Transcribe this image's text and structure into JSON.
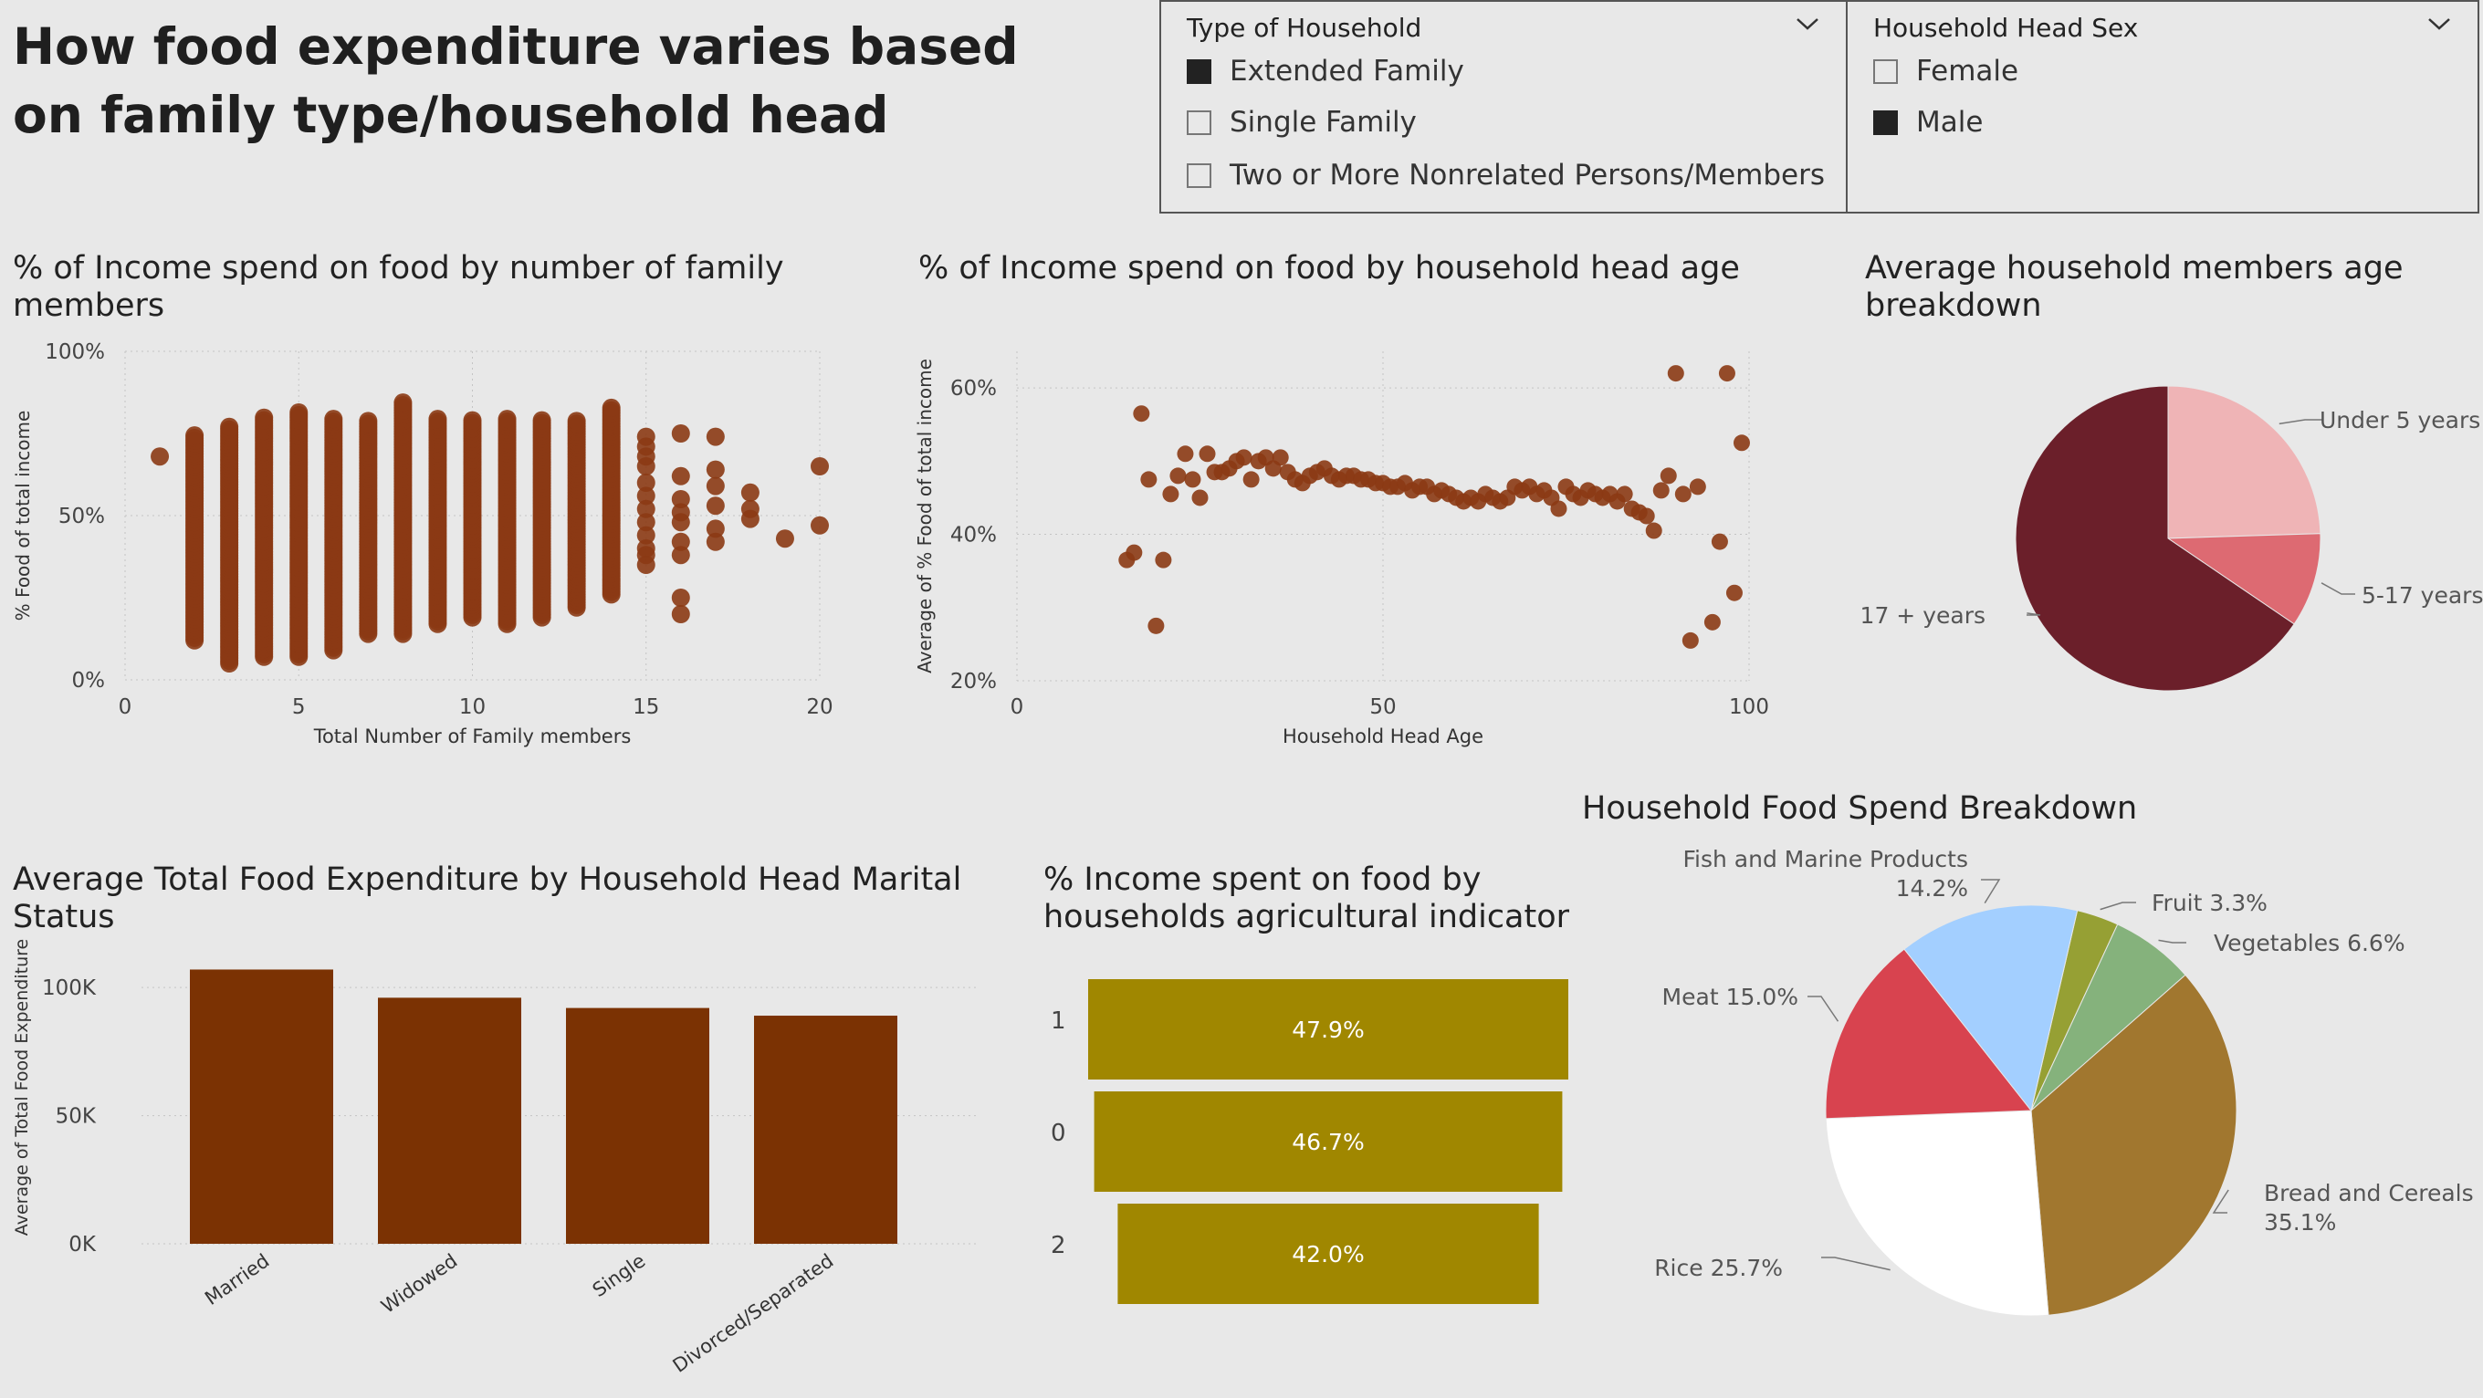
{
  "page": {
    "title": "How food expenditure varies based on family type/household head"
  },
  "slicers": {
    "household_type": {
      "header": "Type of Household",
      "items": [
        {
          "label": "Extended Family",
          "checked": true
        },
        {
          "label": "Single Family",
          "checked": false
        },
        {
          "label": "Two or More Nonrelated Persons/Members",
          "checked": false
        }
      ]
    },
    "head_sex": {
      "header": "Household Head Sex",
      "items": [
        {
          "label": "Female",
          "checked": false
        },
        {
          "label": "Male",
          "checked": true
        }
      ]
    }
  },
  "visuals": {
    "family_members": {
      "title": "% of Income spend on food by number of family members"
    },
    "head_age": {
      "title": "% of Income spend on food by household head age"
    },
    "age_breakdown": {
      "title": "Average household members age breakdown"
    },
    "marital": {
      "title": "Average Total Food Expenditure by Household Head Marital Status"
    },
    "agri": {
      "title": "% Income spent on food by households agricultural indicator"
    },
    "food_spend": {
      "title": "Household Food Spend Breakdown"
    }
  },
  "chart_data": [
    {
      "id": "family_members",
      "type": "scatter",
      "xlabel": "Total Number of Family members",
      "ylabel": "% Food of total income",
      "xlim": [
        0,
        20
      ],
      "ylim": [
        0,
        100
      ],
      "xticks": [
        "0",
        "5",
        "10",
        "15",
        "20"
      ],
      "yticks": [
        "0%",
        "50%",
        "100%"
      ],
      "grid": true,
      "color": "#8b3a14",
      "series": [
        {
          "x": 1,
          "y": [
            68
          ]
        },
        {
          "x": 2,
          "y_range": [
            12,
            75
          ]
        },
        {
          "x": 3,
          "y_range": [
            5,
            77
          ]
        },
        {
          "x": 4,
          "y_range": [
            7,
            80
          ]
        },
        {
          "x": 5,
          "y_range": [
            7,
            82
          ]
        },
        {
          "x": 6,
          "y_range": [
            9,
            80
          ]
        },
        {
          "x": 7,
          "y_range": [
            14,
            79
          ]
        },
        {
          "x": 8,
          "y_range": [
            14,
            85
          ]
        },
        {
          "x": 9,
          "y_range": [
            17,
            80
          ]
        },
        {
          "x": 10,
          "y_range": [
            19,
            79
          ]
        },
        {
          "x": 11,
          "y_range": [
            17,
            80
          ]
        },
        {
          "x": 12,
          "y_range": [
            19,
            79
          ]
        },
        {
          "x": 13,
          "y_range": [
            22,
            79
          ]
        },
        {
          "x": 14,
          "y_range": [
            26,
            83
          ]
        },
        {
          "x": 15,
          "y": [
            35,
            38,
            40,
            44,
            48,
            52,
            56,
            60,
            65,
            68,
            71,
            74
          ]
        },
        {
          "x": 16,
          "y": [
            20,
            25,
            38,
            42,
            48,
            51,
            55,
            62,
            75
          ]
        },
        {
          "x": 17,
          "y": [
            42,
            46,
            53,
            59,
            64,
            74
          ]
        },
        {
          "x": 18,
          "y": [
            49,
            52,
            57
          ]
        },
        {
          "x": 19,
          "y": [
            43
          ]
        },
        {
          "x": 20,
          "y": [
            47,
            65
          ]
        }
      ]
    },
    {
      "id": "head_age",
      "type": "scatter",
      "xlabel": "Household Head Age",
      "ylabel": "Average of % Food of total income",
      "xlim": [
        0,
        100
      ],
      "ylim": [
        20,
        65
      ],
      "xticks": [
        "0",
        "50",
        "100"
      ],
      "yticks": [
        "20%",
        "40%",
        "60%"
      ],
      "grid": true,
      "color": "#8b3a14",
      "points": [
        [
          15,
          36.5
        ],
        [
          16,
          37.5
        ],
        [
          17,
          56.5
        ],
        [
          18,
          47.5
        ],
        [
          19,
          27.5
        ],
        [
          20,
          36.5
        ],
        [
          21,
          45.5
        ],
        [
          22,
          48.0
        ],
        [
          23,
          51.0
        ],
        [
          24,
          47.5
        ],
        [
          25,
          45.0
        ],
        [
          26,
          51.0
        ],
        [
          27,
          48.5
        ],
        [
          28,
          48.5
        ],
        [
          29,
          49.0
        ],
        [
          30,
          50.0
        ],
        [
          31,
          50.5
        ],
        [
          32,
          47.5
        ],
        [
          33,
          50.0
        ],
        [
          34,
          50.5
        ],
        [
          35,
          49.0
        ],
        [
          36,
          50.5
        ],
        [
          37,
          48.5
        ],
        [
          38,
          47.5
        ],
        [
          39,
          47.0
        ],
        [
          40,
          48.0
        ],
        [
          41,
          48.5
        ],
        [
          42,
          49.0
        ],
        [
          43,
          48.0
        ],
        [
          44,
          47.5
        ],
        [
          45,
          48.0
        ],
        [
          46,
          48.0
        ],
        [
          47,
          47.5
        ],
        [
          48,
          47.5
        ],
        [
          49,
          47.0
        ],
        [
          50,
          47.0
        ],
        [
          51,
          46.5
        ],
        [
          52,
          46.5
        ],
        [
          53,
          47.0
        ],
        [
          54,
          46.0
        ],
        [
          55,
          46.5
        ],
        [
          56,
          46.5
        ],
        [
          57,
          45.5
        ],
        [
          58,
          46.0
        ],
        [
          59,
          45.5
        ],
        [
          60,
          45.0
        ],
        [
          61,
          44.5
        ],
        [
          62,
          45.0
        ],
        [
          63,
          44.5
        ],
        [
          64,
          45.5
        ],
        [
          65,
          45.0
        ],
        [
          66,
          44.5
        ],
        [
          67,
          45.0
        ],
        [
          68,
          46.5
        ],
        [
          69,
          46.0
        ],
        [
          70,
          46.5
        ],
        [
          71,
          45.5
        ],
        [
          72,
          46.0
        ],
        [
          73,
          45.0
        ],
        [
          74,
          43.5
        ],
        [
          75,
          46.5
        ],
        [
          76,
          45.5
        ],
        [
          77,
          45.0
        ],
        [
          78,
          46.0
        ],
        [
          79,
          45.5
        ],
        [
          80,
          45.0
        ],
        [
          81,
          45.5
        ],
        [
          82,
          44.5
        ],
        [
          83,
          45.5
        ],
        [
          84,
          43.5
        ],
        [
          85,
          43.0
        ],
        [
          86,
          42.5
        ],
        [
          87,
          40.5
        ],
        [
          88,
          46.0
        ],
        [
          89,
          48.0
        ],
        [
          90,
          62.0
        ],
        [
          91,
          45.5
        ],
        [
          92,
          25.5
        ],
        [
          93,
          46.5
        ],
        [
          95,
          28.0
        ],
        [
          96,
          39.0
        ],
        [
          97,
          62.0
        ],
        [
          98,
          32.0
        ],
        [
          99,
          52.5
        ]
      ]
    },
    {
      "id": "age_breakdown",
      "type": "pie",
      "slices": [
        {
          "label": "Under 5 years",
          "value": 24.5,
          "color": "#efb4b6"
        },
        {
          "label": "5-17 years",
          "value": 10.0,
          "color": "#dd6a72"
        },
        {
          "label": "17 + years",
          "value": 65.5,
          "color": "#6b1f2a"
        }
      ]
    },
    {
      "id": "marital",
      "type": "bar",
      "ylabel": "Average of Total Food Expenditure",
      "categories": [
        "Married",
        "Widowed",
        "Single",
        "Divorced/Separated"
      ],
      "values": [
        107000,
        96000,
        92000,
        89000
      ],
      "ylim": [
        0,
        115000
      ],
      "yticks": [
        "0K",
        "50K",
        "100K"
      ],
      "color": "#7b3203",
      "grid": true
    },
    {
      "id": "agri",
      "type": "bar",
      "orientation": "funnel",
      "categories": [
        "1",
        "0",
        "2"
      ],
      "values": [
        47.9,
        46.7,
        42.0
      ],
      "labels": [
        "47.9%",
        "46.7%",
        "42.0%"
      ],
      "color": "#a08700"
    },
    {
      "id": "food_spend",
      "type": "pie",
      "slices": [
        {
          "label": "Fruit",
          "value": 3.3,
          "display": "Fruit 3.3%",
          "color": "#96a034"
        },
        {
          "label": "Vegetables",
          "value": 6.6,
          "display": "Vegetables 6.6%",
          "color": "#85b27c"
        },
        {
          "label": "Bread and Cereals",
          "value": 35.1,
          "display": "Bread and Cereals 35.1%",
          "color": "#a1772f"
        },
        {
          "label": "Rice",
          "value": 25.7,
          "display": "Rice 25.7%",
          "color": "#ffffff"
        },
        {
          "label": "Meat",
          "value": 15.0,
          "display": "Meat 15.0%",
          "color": "#d8434f"
        },
        {
          "label": "Fish and Marine Products",
          "value": 14.2,
          "display": "Fish and Marine Products 14.2%",
          "color": "#a3cfff"
        }
      ]
    }
  ]
}
